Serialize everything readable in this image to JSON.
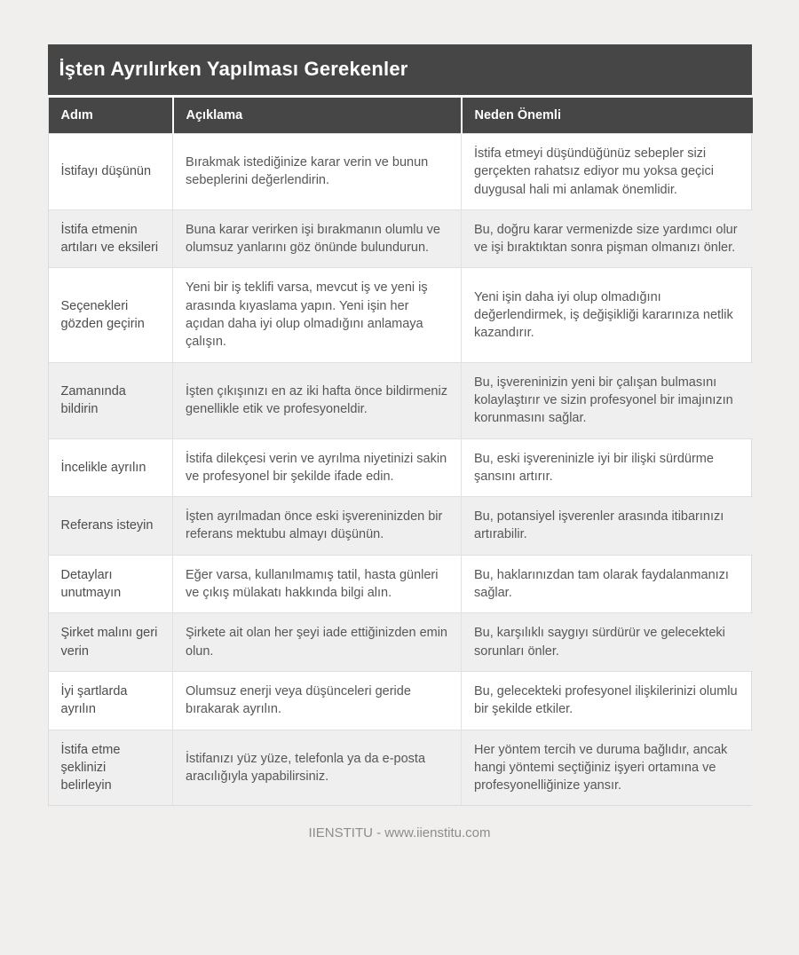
{
  "page": {
    "background_color": "#f0efee"
  },
  "card": {
    "title": "İşten Ayrılırken Yapılması Gerekenler",
    "columns": {
      "step": "Adım",
      "description": "Açıklama",
      "why": "Neden Önemli"
    },
    "rows": [
      {
        "step": "İstifayı düşünün",
        "description": "Bırakmak istediğinize karar verin ve bunun sebeplerini değerlendirin.",
        "why": "İstifa etmeyi düşündüğünüz sebepler sizi gerçekten rahatsız ediyor mu yoksa geçici duygusal hali mi anlamak önemlidir."
      },
      {
        "step": "İstifa etmenin artıları ve eksileri",
        "description": "Buna karar verirken işi bırakmanın olumlu ve olumsuz yanlarını göz önünde bulundurun.",
        "why": "Bu, doğru karar vermenizde size yardımcı olur ve işi bıraktıktan sonra pişman olmanızı önler."
      },
      {
        "step": "Seçenekleri gözden geçirin",
        "description": "Yeni bir iş teklifi varsa, mevcut iş ve yeni iş arasında kıyaslama yapın. Yeni işin her açıdan daha iyi olup olmadığını anlamaya çalışın.",
        "why": "Yeni işin daha iyi olup olmadığını değerlendirmek, iş değişikliği kararınıza netlik kazandırır."
      },
      {
        "step": "Zamanında bildirin",
        "description": "İşten çıkışınızı en az iki hafta önce bildirmeniz genellikle etik ve profesyoneldir.",
        "why": "Bu, işvereninizin yeni bir çalışan bulmasını kolaylaştırır ve sizin profesyonel bir imajınızın korunmasını sağlar."
      },
      {
        "step": "İncelikle ayrılın",
        "description": "İstifa dilekçesi verin ve ayrılma niyetinizi sakin ve profesyonel bir şekilde ifade edin.",
        "why": "Bu, eski işvereninizle iyi bir ilişki sürdürme şansını artırır."
      },
      {
        "step": "Referans isteyin",
        "description": "İşten ayrılmadan önce eski işvereninizden bir referans mektubu almayı düşünün.",
        "why": "Bu, potansiyel işverenler arasında itibarınızı artırabilir."
      },
      {
        "step": "Detayları unutmayın",
        "description": "Eğer varsa, kullanılmamış tatil, hasta günleri ve çıkış mülakatı hakkında bilgi alın.",
        "why": "Bu, haklarınızdan tam olarak faydalanmanızı sağlar."
      },
      {
        "step": "Şirket malını geri verin",
        "description": "Şirkete ait olan her şeyi iade ettiğinizden emin olun.",
        "why": "Bu, karşılıklı saygıyı sürdürür ve gelecekteki sorunları önler."
      },
      {
        "step": "İyi şartlarda ayrılın",
        "description": "Olumsuz enerji veya düşünceleri geride bırakarak ayrılın.",
        "why": "Bu, gelecekteki profesyonel ilişkilerinizi olumlu bir şekilde etkiler."
      },
      {
        "step": "İstifa etme şeklinizi belirleyin",
        "description": "İstifanızı yüz yüze, telefonla ya da e-posta aracılığıyla yapabilirsiniz.",
        "why": "Her yöntem tercih ve duruma bağlıdır, ancak hangi yöntemi seçtiğiniz işyeri ortamına ve profesyonelliğinize yansır."
      }
    ],
    "colors": {
      "header_bg": "#464646",
      "header_text": "#ffffff",
      "row_alt_bg": "#efefef",
      "border": "#e0e0e0",
      "body_text": "#575757"
    }
  },
  "footer": {
    "text": "IIENSTITU - www.iienstitu.com"
  }
}
